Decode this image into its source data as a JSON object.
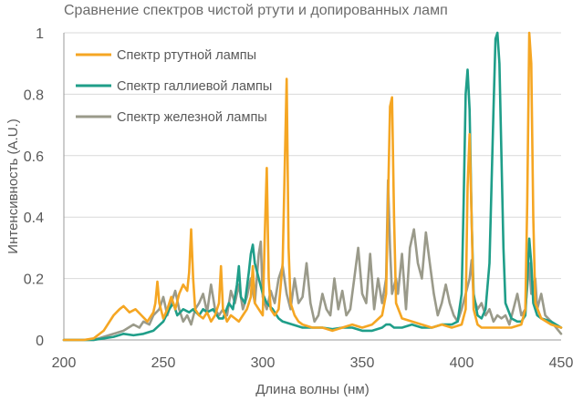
{
  "chart_data": {
    "type": "line",
    "title": "Сравнение спектров чистой ртути и допированных ламп",
    "xlabel": "Длина волны (нм)",
    "ylabel": "Интенсивность (A.U.)",
    "xlim": [
      200,
      450
    ],
    "ylim": [
      0,
      1
    ],
    "x_ticks": [
      "200",
      "250",
      "300",
      "350",
      "400",
      "450"
    ],
    "y_ticks": [
      "0",
      "0.2",
      "0.4",
      "0.6",
      "0.8",
      "1"
    ],
    "grid": "horizontal",
    "legend_position": "top-left",
    "series": [
      {
        "name": "Спектр ртутной лампы",
        "color": "#F5A623",
        "points": [
          [
            200,
            0.0
          ],
          [
            210,
            0.0
          ],
          [
            215,
            0.005
          ],
          [
            220,
            0.03
          ],
          [
            225,
            0.08
          ],
          [
            228,
            0.1
          ],
          [
            230,
            0.11
          ],
          [
            233,
            0.09
          ],
          [
            236,
            0.1
          ],
          [
            239,
            0.08
          ],
          [
            242,
            0.06
          ],
          [
            245,
            0.09
          ],
          [
            246,
            0.12
          ],
          [
            247,
            0.19
          ],
          [
            248,
            0.12
          ],
          [
            250,
            0.07
          ],
          [
            252,
            0.1
          ],
          [
            254,
            0.14
          ],
          [
            256,
            0.1
          ],
          [
            258,
            0.15
          ],
          [
            260,
            0.18
          ],
          [
            262,
            0.16
          ],
          [
            263,
            0.22
          ],
          [
            264,
            0.36
          ],
          [
            265,
            0.2
          ],
          [
            266,
            0.1
          ],
          [
            268,
            0.08
          ],
          [
            270,
            0.07
          ],
          [
            272,
            0.09
          ],
          [
            274,
            0.06
          ],
          [
            276,
            0.08
          ],
          [
            278,
            0.12
          ],
          [
            279,
            0.24
          ],
          [
            280,
            0.1
          ],
          [
            282,
            0.06
          ],
          [
            284,
            0.08
          ],
          [
            286,
            0.07
          ],
          [
            288,
            0.06
          ],
          [
            290,
            0.08
          ],
          [
            292,
            0.1
          ],
          [
            294,
            0.14
          ],
          [
            295,
            0.24
          ],
          [
            296,
            0.12
          ],
          [
            298,
            0.1
          ],
          [
            300,
            0.08
          ],
          [
            301,
            0.34
          ],
          [
            302,
            0.56
          ],
          [
            303,
            0.2
          ],
          [
            304,
            0.1
          ],
          [
            306,
            0.08
          ],
          [
            308,
            0.1
          ],
          [
            310,
            0.25
          ],
          [
            311,
            0.55
          ],
          [
            312,
            0.85
          ],
          [
            313,
            0.3
          ],
          [
            314,
            0.12
          ],
          [
            316,
            0.08
          ],
          [
            318,
            0.06
          ],
          [
            320,
            0.05
          ],
          [
            325,
            0.04
          ],
          [
            330,
            0.04
          ],
          [
            335,
            0.03
          ],
          [
            340,
            0.04
          ],
          [
            345,
            0.05
          ],
          [
            350,
            0.04
          ],
          [
            355,
            0.05
          ],
          [
            360,
            0.08
          ],
          [
            362,
            0.15
          ],
          [
            363,
            0.45
          ],
          [
            364,
            0.76
          ],
          [
            365,
            0.79
          ],
          [
            366,
            0.4
          ],
          [
            367,
            0.12
          ],
          [
            370,
            0.07
          ],
          [
            375,
            0.06
          ],
          [
            380,
            0.05
          ],
          [
            385,
            0.04
          ],
          [
            390,
            0.05
          ],
          [
            395,
            0.04
          ],
          [
            400,
            0.05
          ],
          [
            402,
            0.1
          ],
          [
            403,
            0.5
          ],
          [
            404,
            0.67
          ],
          [
            405,
            0.4
          ],
          [
            406,
            0.1
          ],
          [
            408,
            0.05
          ],
          [
            410,
            0.04
          ],
          [
            415,
            0.04
          ],
          [
            420,
            0.04
          ],
          [
            425,
            0.04
          ],
          [
            430,
            0.05
          ],
          [
            432,
            0.1
          ],
          [
            433,
            0.45
          ],
          [
            434,
            1.0
          ],
          [
            435,
            0.9
          ],
          [
            436,
            0.4
          ],
          [
            437,
            0.12
          ],
          [
            440,
            0.07
          ],
          [
            445,
            0.05
          ],
          [
            450,
            0.04
          ]
        ]
      },
      {
        "name": "Спектр галлиевой лампы",
        "color": "#1F9E89",
        "points": [
          [
            200,
            0.0
          ],
          [
            215,
            0.0
          ],
          [
            220,
            0.005
          ],
          [
            225,
            0.01
          ],
          [
            230,
            0.02
          ],
          [
            235,
            0.015
          ],
          [
            240,
            0.02
          ],
          [
            245,
            0.03
          ],
          [
            250,
            0.06
          ],
          [
            253,
            0.1
          ],
          [
            255,
            0.12
          ],
          [
            257,
            0.08
          ],
          [
            260,
            0.1
          ],
          [
            263,
            0.09
          ],
          [
            265,
            0.1
          ],
          [
            268,
            0.08
          ],
          [
            270,
            0.1
          ],
          [
            272,
            0.09
          ],
          [
            275,
            0.1
          ],
          [
            278,
            0.07
          ],
          [
            280,
            0.07
          ],
          [
            283,
            0.12
          ],
          [
            285,
            0.1
          ],
          [
            287,
            0.18
          ],
          [
            288,
            0.24
          ],
          [
            289,
            0.14
          ],
          [
            291,
            0.12
          ],
          [
            293,
            0.22
          ],
          [
            294,
            0.28
          ],
          [
            295,
            0.31
          ],
          [
            296,
            0.25
          ],
          [
            298,
            0.2
          ],
          [
            300,
            0.15
          ],
          [
            302,
            0.12
          ],
          [
            305,
            0.1
          ],
          [
            308,
            0.07
          ],
          [
            310,
            0.06
          ],
          [
            315,
            0.05
          ],
          [
            320,
            0.04
          ],
          [
            325,
            0.04
          ],
          [
            330,
            0.04
          ],
          [
            335,
            0.035
          ],
          [
            340,
            0.04
          ],
          [
            345,
            0.04
          ],
          [
            350,
            0.03
          ],
          [
            355,
            0.03
          ],
          [
            360,
            0.04
          ],
          [
            362,
            0.05
          ],
          [
            364,
            0.05
          ],
          [
            366,
            0.04
          ],
          [
            370,
            0.04
          ],
          [
            375,
            0.05
          ],
          [
            380,
            0.04
          ],
          [
            385,
            0.04
          ],
          [
            390,
            0.05
          ],
          [
            395,
            0.05
          ],
          [
            398,
            0.06
          ],
          [
            400,
            0.15
          ],
          [
            401,
            0.45
          ],
          [
            402,
            0.8
          ],
          [
            403,
            0.88
          ],
          [
            404,
            0.75
          ],
          [
            405,
            0.4
          ],
          [
            406,
            0.15
          ],
          [
            408,
            0.08
          ],
          [
            410,
            0.07
          ],
          [
            412,
            0.1
          ],
          [
            414,
            0.25
          ],
          [
            416,
            0.75
          ],
          [
            417,
            0.98
          ],
          [
            418,
            1.0
          ],
          [
            419,
            0.9
          ],
          [
            420,
            0.6
          ],
          [
            421,
            0.3
          ],
          [
            422,
            0.12
          ],
          [
            425,
            0.07
          ],
          [
            428,
            0.06
          ],
          [
            430,
            0.06
          ],
          [
            432,
            0.08
          ],
          [
            433,
            0.2
          ],
          [
            434,
            0.33
          ],
          [
            435,
            0.25
          ],
          [
            436,
            0.12
          ],
          [
            438,
            0.08
          ],
          [
            440,
            0.07
          ],
          [
            445,
            0.06
          ],
          [
            450,
            0.04
          ]
        ]
      },
      {
        "name": "Спектр железной лампы",
        "color": "#9A9A8A",
        "points": [
          [
            200,
            0.0
          ],
          [
            215,
            0.0
          ],
          [
            220,
            0.01
          ],
          [
            225,
            0.02
          ],
          [
            230,
            0.03
          ],
          [
            235,
            0.05
          ],
          [
            238,
            0.04
          ],
          [
            240,
            0.06
          ],
          [
            243,
            0.05
          ],
          [
            245,
            0.08
          ],
          [
            248,
            0.1
          ],
          [
            250,
            0.14
          ],
          [
            252,
            0.08
          ],
          [
            254,
            0.12
          ],
          [
            256,
            0.16
          ],
          [
            258,
            0.1
          ],
          [
            260,
            0.06
          ],
          [
            262,
            0.08
          ],
          [
            264,
            0.05
          ],
          [
            266,
            0.1
          ],
          [
            268,
            0.12
          ],
          [
            270,
            0.15
          ],
          [
            272,
            0.09
          ],
          [
            274,
            0.18
          ],
          [
            276,
            0.1
          ],
          [
            278,
            0.08
          ],
          [
            280,
            0.1
          ],
          [
            282,
            0.08
          ],
          [
            284,
            0.16
          ],
          [
            286,
            0.12
          ],
          [
            288,
            0.18
          ],
          [
            290,
            0.1
          ],
          [
            292,
            0.14
          ],
          [
            294,
            0.2
          ],
          [
            296,
            0.12
          ],
          [
            298,
            0.28
          ],
          [
            299,
            0.32
          ],
          [
            300,
            0.14
          ],
          [
            302,
            0.1
          ],
          [
            304,
            0.16
          ],
          [
            306,
            0.12
          ],
          [
            308,
            0.2
          ],
          [
            310,
            0.24
          ],
          [
            312,
            0.15
          ],
          [
            314,
            0.1
          ],
          [
            316,
            0.2
          ],
          [
            318,
            0.12
          ],
          [
            320,
            0.14
          ],
          [
            322,
            0.25
          ],
          [
            324,
            0.12
          ],
          [
            326,
            0.06
          ],
          [
            328,
            0.08
          ],
          [
            330,
            0.15
          ],
          [
            332,
            0.1
          ],
          [
            334,
            0.08
          ],
          [
            336,
            0.2
          ],
          [
            338,
            0.1
          ],
          [
            340,
            0.16
          ],
          [
            342,
            0.08
          ],
          [
            344,
            0.1
          ],
          [
            346,
            0.2
          ],
          [
            348,
            0.3
          ],
          [
            350,
            0.15
          ],
          [
            352,
            0.12
          ],
          [
            354,
            0.28
          ],
          [
            356,
            0.1
          ],
          [
            358,
            0.2
          ],
          [
            360,
            0.12
          ],
          [
            362,
            0.2
          ],
          [
            363,
            0.52
          ],
          [
            364,
            0.3
          ],
          [
            365,
            0.15
          ],
          [
            367,
            0.2
          ],
          [
            368,
            0.15
          ],
          [
            370,
            0.28
          ],
          [
            372,
            0.1
          ],
          [
            374,
            0.3
          ],
          [
            376,
            0.36
          ],
          [
            378,
            0.25
          ],
          [
            380,
            0.2
          ],
          [
            382,
            0.35
          ],
          [
            384,
            0.25
          ],
          [
            386,
            0.15
          ],
          [
            388,
            0.08
          ],
          [
            390,
            0.12
          ],
          [
            392,
            0.18
          ],
          [
            394,
            0.12
          ],
          [
            396,
            0.08
          ],
          [
            398,
            0.06
          ],
          [
            400,
            0.1
          ],
          [
            402,
            0.15
          ],
          [
            404,
            0.2
          ],
          [
            405,
            0.26
          ],
          [
            406,
            0.14
          ],
          [
            408,
            0.1
          ],
          [
            410,
            0.12
          ],
          [
            412,
            0.08
          ],
          [
            414,
            0.1
          ],
          [
            416,
            0.06
          ],
          [
            418,
            0.08
          ],
          [
            420,
            0.07
          ],
          [
            422,
            0.08
          ],
          [
            424,
            0.05
          ],
          [
            426,
            0.1
          ],
          [
            428,
            0.15
          ],
          [
            430,
            0.08
          ],
          [
            432,
            0.1
          ],
          [
            434,
            0.25
          ],
          [
            435,
            0.15
          ],
          [
            437,
            0.2
          ],
          [
            438,
            0.1
          ],
          [
            440,
            0.15
          ],
          [
            442,
            0.08
          ],
          [
            445,
            0.06
          ],
          [
            450,
            0.02
          ]
        ]
      }
    ]
  }
}
